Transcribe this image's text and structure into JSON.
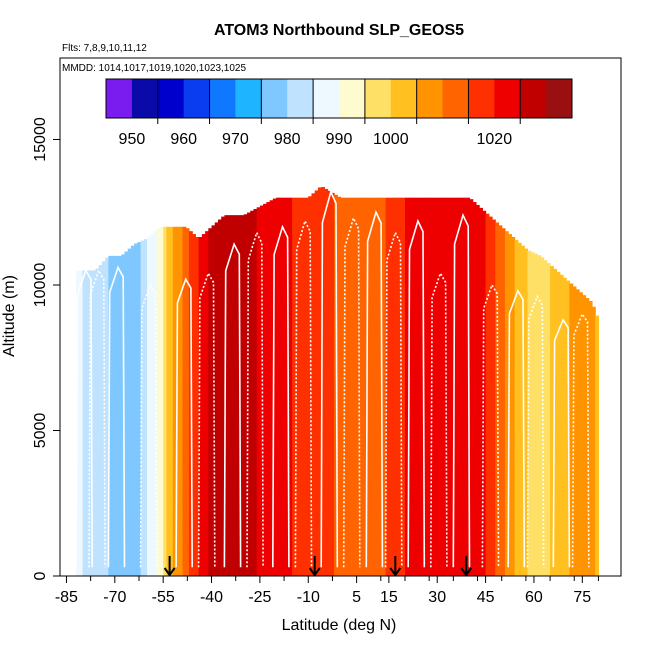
{
  "chart_data": {
    "type": "heatmap",
    "title": "ATOM3 Northbound SLP_GEOS5",
    "subtitle_flights": "Flts: 7,8,9,10,11,12",
    "subtitle_dates": "MMDD: 1014,1017,1019,1020,1023,1025",
    "xlabel": "Latitude (deg N)",
    "ylabel": "Altitude (m)",
    "xlim": [
      -87,
      87
    ],
    "ylim": [
      0,
      17800
    ],
    "x_ticks": [
      -85,
      -70,
      -55,
      -40,
      -25,
      -10,
      5,
      15,
      30,
      45,
      60,
      75
    ],
    "x_tick_labels": [
      "-85",
      "-70",
      "-55",
      "-40",
      "-25",
      "-10",
      "5",
      "15",
      "30",
      "45",
      "60",
      "75"
    ],
    "y_ticks": [
      0,
      5000,
      10000,
      15000
    ],
    "y_tick_labels": [
      "0",
      "5000",
      "10000",
      "15000"
    ],
    "colorbar": {
      "min": 945,
      "max": 1035,
      "boundaries": [
        945,
        950,
        955,
        960,
        965,
        970,
        975,
        980,
        985,
        990,
        995,
        1000,
        1005,
        1010,
        1015,
        1020,
        1025,
        1030,
        1035
      ],
      "colors": [
        "#7a1cf0",
        "#0a0aa8",
        "#0000cd",
        "#0a3cf0",
        "#0f78ff",
        "#1eb4ff",
        "#7ec8ff",
        "#bfe2ff",
        "#eef8ff",
        "#fffbd0",
        "#ffe066",
        "#ffc020",
        "#ff9400",
        "#ff6400",
        "#ff3000",
        "#ee0000",
        "#c00000",
        "#9a1010"
      ],
      "tick_values": [
        950,
        960,
        970,
        980,
        990,
        1000,
        1020
      ],
      "tick_labels": [
        "950",
        "960",
        "970",
        "980",
        "990",
        "1000",
        "1020"
      ]
    },
    "slp_by_latitude": {
      "lat": [
        -82,
        -76,
        -70,
        -66,
        -62,
        -58,
        -55,
        -52,
        -48,
        -44,
        -40,
        -35,
        -30,
        -25,
        -20,
        -15,
        -10,
        -5,
        0,
        5,
        10,
        15,
        20,
        25,
        30,
        35,
        40,
        45,
        50,
        55,
        60,
        65,
        70,
        76,
        80
      ],
      "slp": [
        986,
        983,
        978,
        976,
        980,
        988,
        996,
        1004,
        1012,
        1020,
        1026,
        1030,
        1028,
        1024,
        1022,
        1020,
        1018,
        1016,
        1014,
        1012,
        1012,
        1016,
        1020,
        1022,
        1022,
        1024,
        1024,
        1020,
        1012,
        1002,
        998,
        1000,
        1004,
        1008,
        1004
      ]
    },
    "ceiling_profile": {
      "lat": [
        -84,
        -76,
        -72,
        -68,
        -64,
        -60,
        -56,
        -52,
        -48,
        -44,
        -40,
        -36,
        -30,
        -20,
        -10,
        -6,
        0,
        10,
        20,
        30,
        40,
        46,
        50,
        54,
        58,
        62,
        66,
        70,
        74,
        78,
        80
      ],
      "alt": [
        10500,
        10500,
        11000,
        11000,
        11400,
        11600,
        12000,
        12000,
        12000,
        11600,
        12000,
        12400,
        12400,
        13000,
        13000,
        13400,
        13000,
        13000,
        13000,
        13000,
        13000,
        12400,
        12000,
        11600,
        11200,
        11000,
        10600,
        10200,
        9800,
        9400,
        8800
      ]
    },
    "flight_profiles": {
      "lat_segments": [
        [
          -82,
          -79,
          -77
        ],
        [
          -78,
          -75,
          -73
        ],
        [
          -72,
          -69,
          -67
        ],
        [
          -62,
          -59,
          -57
        ],
        [
          -51,
          -48,
          -46
        ],
        [
          -44,
          -41,
          -39
        ],
        [
          -36,
          -33,
          -31
        ],
        [
          -29,
          -26,
          -24
        ],
        [
          -21,
          -18,
          -16
        ],
        [
          -14,
          -11,
          -9
        ],
        [
          -6,
          -3,
          -1
        ],
        [
          1,
          4,
          6
        ],
        [
          8,
          11,
          13
        ],
        [
          14,
          17,
          19
        ],
        [
          21,
          24,
          26
        ],
        [
          28,
          31,
          33
        ],
        [
          35,
          38,
          40
        ],
        [
          44,
          47,
          49
        ],
        [
          52,
          55,
          57
        ],
        [
          58,
          61,
          63
        ],
        [
          66,
          69,
          71
        ],
        [
          72,
          75,
          77
        ]
      ],
      "peak_alt": [
        10500,
        10500,
        10600,
        10000,
        10200,
        10400,
        11400,
        11800,
        12000,
        12200,
        13200,
        12300,
        12500,
        11800,
        12200,
        10400,
        12400,
        10000,
        9800,
        9600,
        8800,
        9000
      ]
    },
    "arrow_latitudes": [
      -53,
      -8,
      17,
      39
    ]
  }
}
